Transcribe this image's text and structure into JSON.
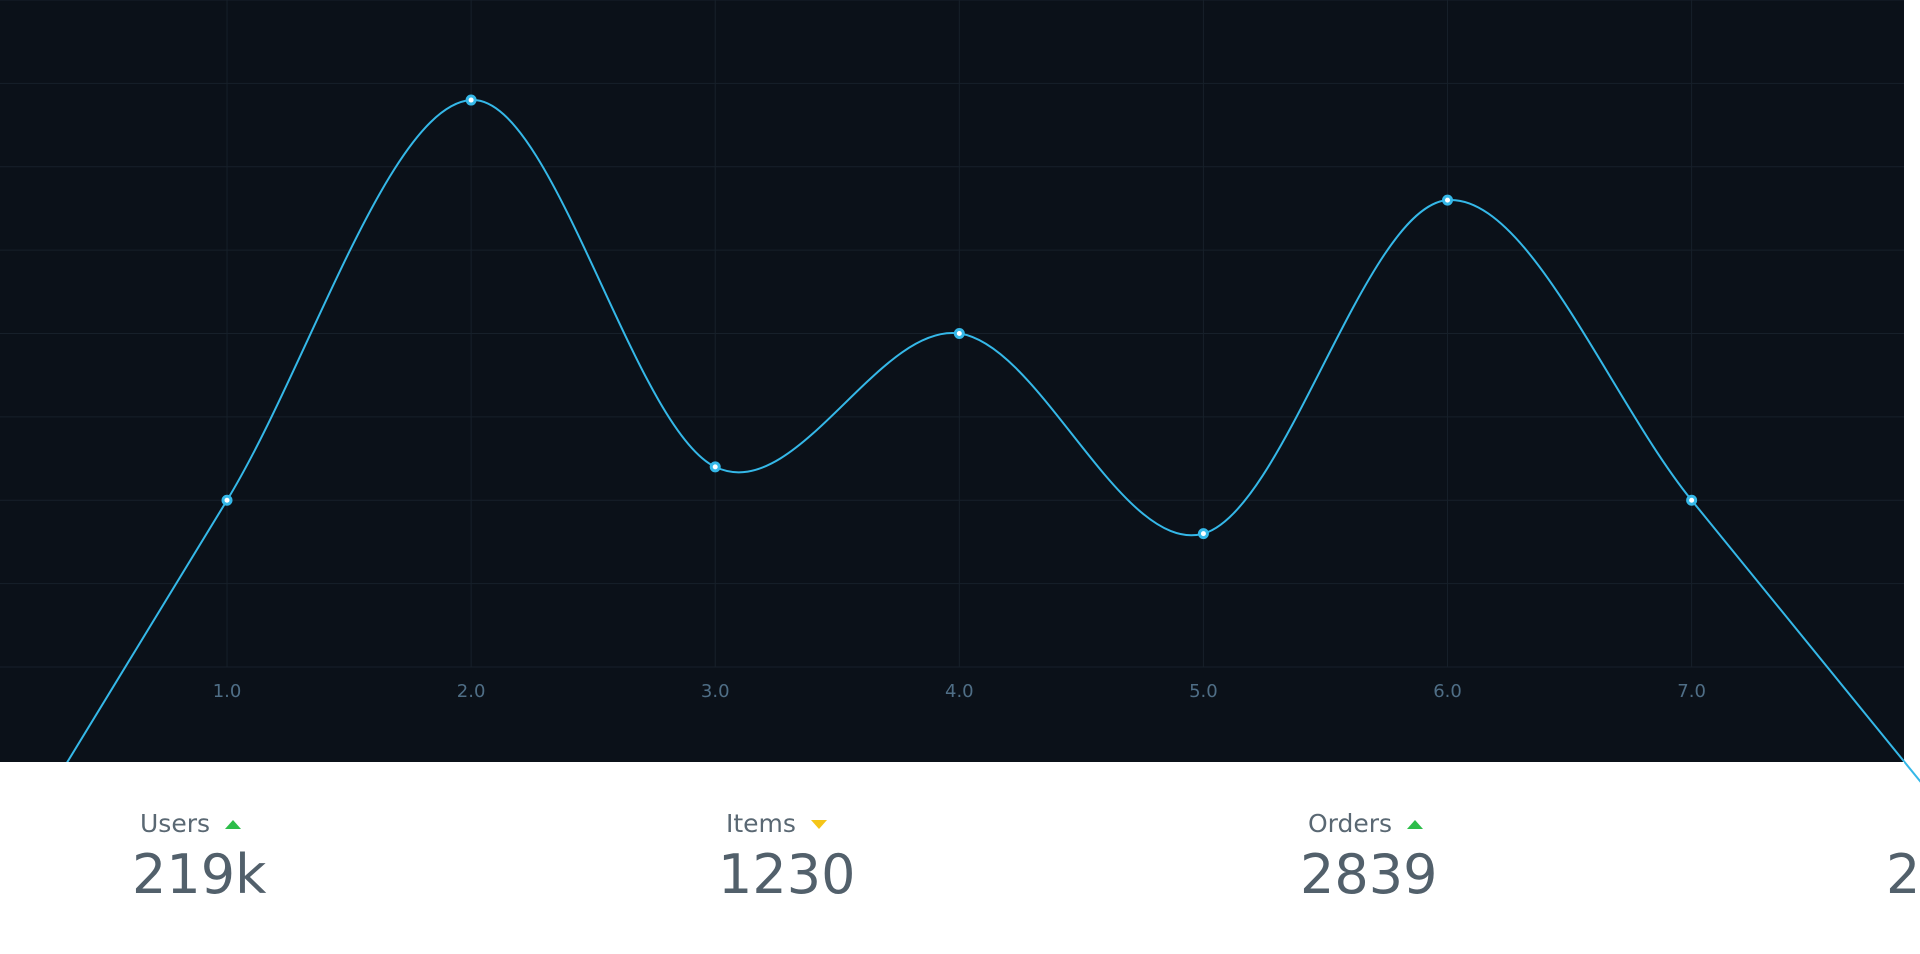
{
  "chart_data": {
    "type": "line",
    "x": [
      1,
      2,
      3,
      4,
      5,
      6,
      7
    ],
    "tick_labels": [
      "1.0",
      "2.0",
      "3.0",
      "4.0",
      "5.0",
      "6.0",
      "7.0"
    ],
    "series": [
      {
        "values": [
          5,
          17,
          6,
          10,
          4,
          14,
          5
        ]
      }
    ],
    "xlim": [
      0.07,
      7.87
    ],
    "ylim": [
      0,
      20
    ],
    "curve": "smooth",
    "grid": true,
    "colors": {
      "line": "#35b8e8",
      "grid": "#17202a",
      "background": "#0b1119",
      "tick": "#4f6e86"
    }
  },
  "stats": [
    {
      "label": "Users",
      "value": "219k",
      "trend": "up"
    },
    {
      "label": "Items",
      "value": "1230",
      "trend": "down"
    },
    {
      "label": "Orders",
      "value": "2839",
      "trend": "up"
    },
    {
      "label": "",
      "value": "2",
      "trend": ""
    }
  ]
}
